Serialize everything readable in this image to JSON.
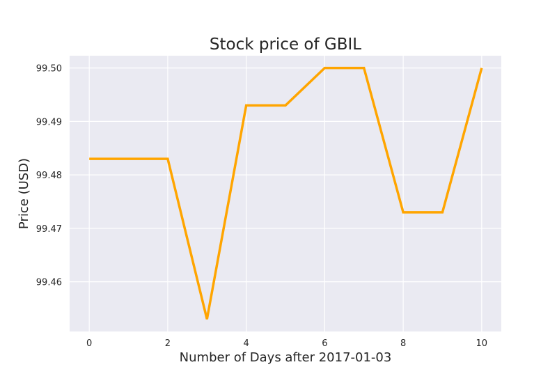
{
  "chart_data": {
    "type": "line",
    "title": "Stock price of GBIL",
    "xlabel": "Number of Days after 2017-01-03",
    "ylabel": "Price (USD)",
    "x": [
      0,
      1,
      2,
      3,
      4,
      5,
      6,
      7,
      8,
      9,
      10
    ],
    "series": [
      {
        "values": [
          99.483,
          99.483,
          99.483,
          99.453,
          99.493,
          99.493,
          99.5,
          99.5,
          99.473,
          99.473,
          99.5
        ],
        "color": "#ffa500"
      }
    ],
    "xlim": [
      -0.5,
      10.5
    ],
    "ylim": [
      99.4507,
      99.5023
    ],
    "xticks": [
      0,
      2,
      4,
      6,
      8,
      10
    ],
    "xtick_labels": [
      "0",
      "2",
      "4",
      "6",
      "8",
      "10"
    ],
    "yticks": [
      99.46,
      99.47,
      99.48,
      99.49,
      99.5
    ],
    "ytick_labels": [
      "99.46",
      "99.47",
      "99.48",
      "99.49",
      "99.50"
    ],
    "grid": true,
    "background": "#eaeaf2",
    "grid_color": "#ffffff"
  }
}
